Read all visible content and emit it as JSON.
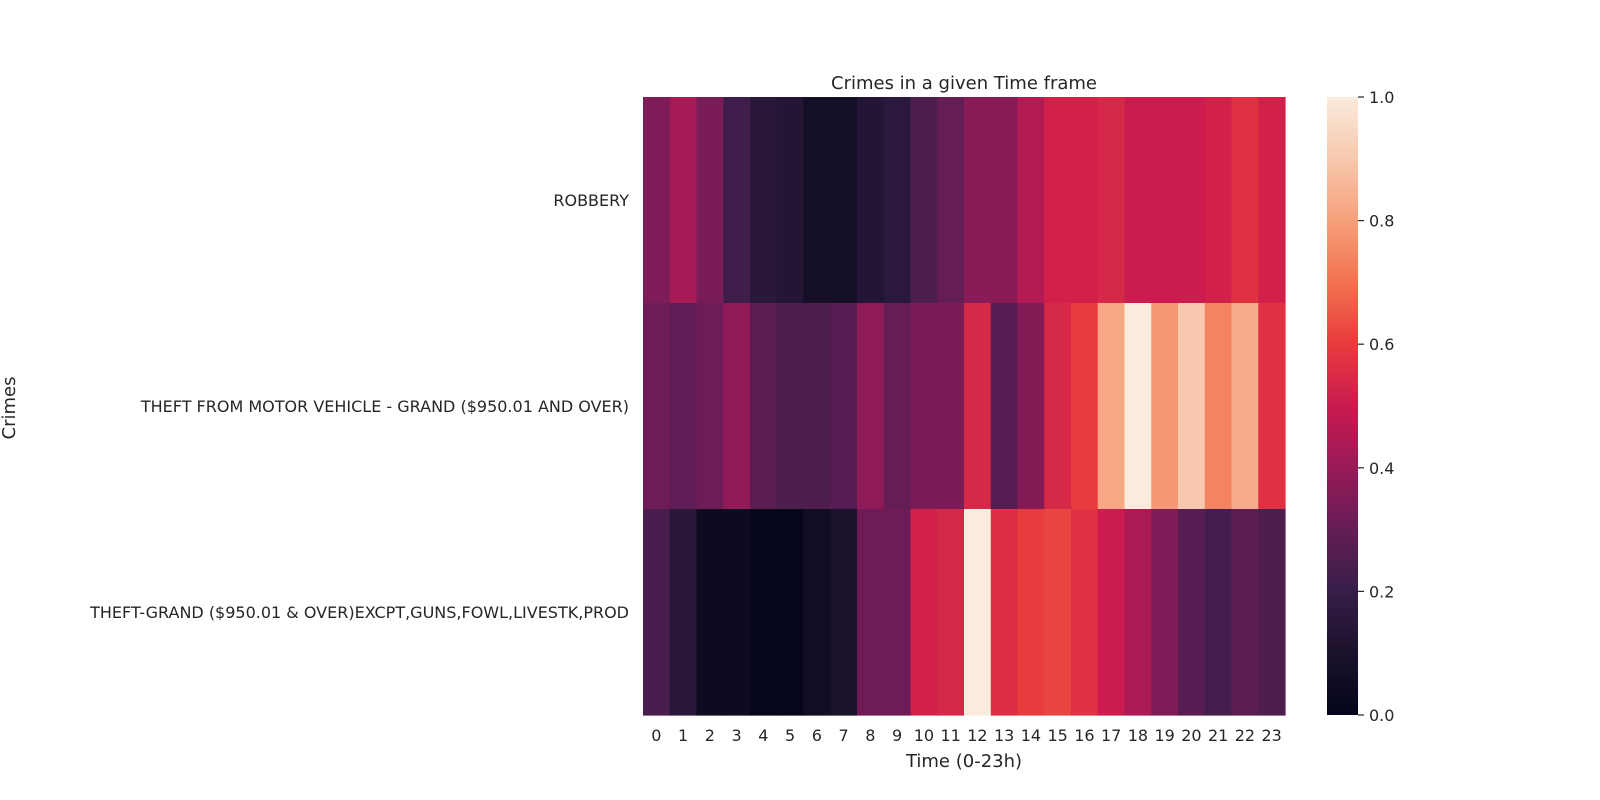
{
  "chart_data": {
    "type": "heatmap",
    "title": "Crimes in a given Time frame",
    "xlabel": "Time (0-23h)",
    "ylabel": "Crimes",
    "x": [
      "0",
      "1",
      "2",
      "3",
      "4",
      "5",
      "6",
      "7",
      "8",
      "9",
      "10",
      "11",
      "12",
      "13",
      "14",
      "15",
      "16",
      "17",
      "18",
      "19",
      "20",
      "21",
      "22",
      "23"
    ],
    "y": [
      "ROBBERY",
      "THEFT FROM MOTOR VEHICLE - GRAND ($950.01 AND OVER)",
      "THEFT-GRAND ($950.01 & OVER)EXCPT,GUNS,FOWL,LIVESTK,PROD"
    ],
    "values": [
      [
        0.35,
        0.43,
        0.34,
        0.22,
        0.15,
        0.13,
        0.07,
        0.07,
        0.13,
        0.16,
        0.25,
        0.3,
        0.37,
        0.37,
        0.45,
        0.52,
        0.52,
        0.54,
        0.5,
        0.5,
        0.5,
        0.52,
        0.57,
        0.52
      ],
      [
        0.32,
        0.29,
        0.32,
        0.39,
        0.28,
        0.25,
        0.25,
        0.27,
        0.38,
        0.3,
        0.34,
        0.34,
        0.54,
        0.27,
        0.36,
        0.54,
        0.6,
        0.82,
        1.0,
        0.78,
        0.9,
        0.74,
        0.83,
        0.57
      ],
      [
        0.24,
        0.15,
        0.04,
        0.04,
        0.01,
        0.01,
        0.06,
        0.1,
        0.32,
        0.32,
        0.52,
        0.54,
        1.0,
        0.56,
        0.6,
        0.62,
        0.57,
        0.5,
        0.44,
        0.35,
        0.27,
        0.23,
        0.28,
        0.25
      ]
    ],
    "colorbar": {
      "min": 0.0,
      "max": 1.0,
      "ticks": [
        "0.0",
        "0.2",
        "0.4",
        "0.6",
        "0.8",
        "1.0"
      ]
    }
  }
}
